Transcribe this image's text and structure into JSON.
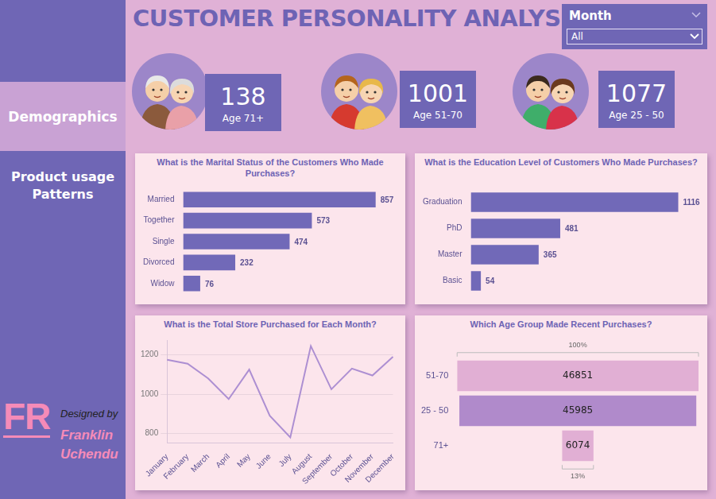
{
  "header": {
    "title": "CUSTOMER PERSONALITY ANALYSIS"
  },
  "slicer": {
    "label": "Month",
    "value": "All"
  },
  "sidebar": {
    "sections": [
      "Demographics",
      "Product usage Patterns"
    ],
    "logo": "FR",
    "credit": "Designed by",
    "author": [
      "Franklin",
      "Uchendu"
    ]
  },
  "cards": [
    {
      "value": 138,
      "label": "Age 71+"
    },
    {
      "value": 1001,
      "label": "Age 51-70"
    },
    {
      "value": 1077,
      "label": "Age 25 - 50"
    }
  ],
  "chart_data": [
    {
      "type": "bar",
      "orientation": "horizontal",
      "title": "What is the Marital Status of the Customers Who Made Purchases?",
      "categories": [
        "Married",
        "Together",
        "Single",
        "Divorced",
        "Widow"
      ],
      "values": [
        857,
        573,
        474,
        232,
        76
      ],
      "color": "#7169b8",
      "xlim": [
        0,
        950
      ],
      "data_labels": true,
      "tick_labels": "y",
      "grid": false
    },
    {
      "type": "bar",
      "orientation": "horizontal",
      "title": "What is the Education Level of Customers Who Made Purchases?",
      "categories": [
        "Graduation",
        "PhD",
        "Master",
        "Basic"
      ],
      "values": [
        1116,
        481,
        365,
        54
      ],
      "color": "#7169b8",
      "xlim": [
        0,
        1225
      ],
      "data_labels": true,
      "tick_labels": "y",
      "grid": false
    },
    {
      "type": "line",
      "title": "What is the Total Store Purchased for Each Month?",
      "categories": [
        "January",
        "February",
        "March",
        "April",
        "May",
        "June",
        "July",
        "August",
        "September",
        "October",
        "November",
        "December"
      ],
      "values": [
        1175,
        1155,
        1080,
        975,
        1125,
        890,
        780,
        1245,
        1025,
        1130,
        1095,
        1190
      ],
      "color": "#ad8fd2",
      "ylim": [
        750,
        1275
      ],
      "yticks": [
        800,
        1000,
        1200
      ],
      "grid": true
    },
    {
      "type": "funnel",
      "title": "Which Age Group Made Recent Purchases?",
      "categories": [
        "51-70",
        "25 - 50",
        "71+"
      ],
      "values": [
        46851,
        45985,
        6074
      ],
      "colors": [
        "#e1afd4",
        "#b08acb",
        "#e1afd4"
      ],
      "data_labels": true,
      "percent_labels": [
        {
          "value": 100,
          "label": "100%"
        },
        {
          "value": 13,
          "label": "13%"
        }
      ]
    }
  ]
}
